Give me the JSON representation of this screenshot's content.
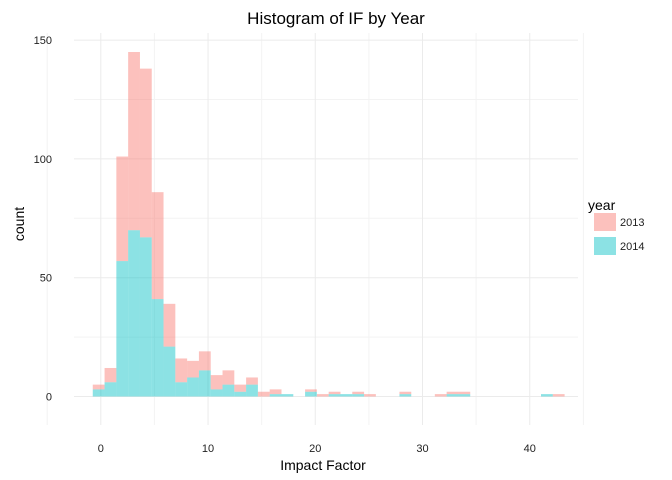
{
  "chart_data": {
    "type": "bar",
    "title": "Histogram of IF by Year",
    "xlabel": "Impact Factor",
    "ylabel": "count",
    "xlim": [
      -2.5,
      44.5
    ],
    "ylim": [
      -12,
      153
    ],
    "x_ticks": [
      0,
      10,
      20,
      30,
      40
    ],
    "y_ticks": [
      0,
      50,
      100,
      150
    ],
    "x_minor_ticks": [
      -5,
      5,
      15,
      25,
      35,
      45
    ],
    "y_minor_ticks": [
      25,
      75,
      125
    ],
    "bin_width": 1.1,
    "stacked": true,
    "grid": true,
    "legend": {
      "title": "year",
      "position": "right",
      "entries": [
        "2013",
        "2014"
      ]
    },
    "series": [
      {
        "name": "2013",
        "color": "#F8766D",
        "bins": [
          {
            "x": -0.2,
            "count": 2
          },
          {
            "x": 0.9,
            "count": 6
          },
          {
            "x": 2.0,
            "count": 44
          },
          {
            "x": 3.1,
            "count": 75
          },
          {
            "x": 4.2,
            "count": 71
          },
          {
            "x": 5.3,
            "count": 45
          },
          {
            "x": 6.4,
            "count": 18
          },
          {
            "x": 7.5,
            "count": 10
          },
          {
            "x": 8.6,
            "count": 7
          },
          {
            "x": 9.7,
            "count": 8
          },
          {
            "x": 10.8,
            "count": 6
          },
          {
            "x": 11.9,
            "count": 6
          },
          {
            "x": 13.0,
            "count": 3
          },
          {
            "x": 14.1,
            "count": 3
          },
          {
            "x": 15.2,
            "count": 2
          },
          {
            "x": 16.3,
            "count": 2
          },
          {
            "x": 19.6,
            "count": 1
          },
          {
            "x": 20.7,
            "count": 1
          },
          {
            "x": 21.8,
            "count": 1
          },
          {
            "x": 24.0,
            "count": 1
          },
          {
            "x": 25.1,
            "count": 1
          },
          {
            "x": 28.4,
            "count": 1
          },
          {
            "x": 31.7,
            "count": 1
          },
          {
            "x": 32.8,
            "count": 1
          },
          {
            "x": 33.9,
            "count": 1
          },
          {
            "x": 42.7,
            "count": 1
          }
        ]
      },
      {
        "name": "2014",
        "color": "#00BFC4",
        "bins": [
          {
            "x": -0.2,
            "count": 3
          },
          {
            "x": 0.9,
            "count": 6
          },
          {
            "x": 2.0,
            "count": 57
          },
          {
            "x": 3.1,
            "count": 70
          },
          {
            "x": 4.2,
            "count": 67
          },
          {
            "x": 5.3,
            "count": 41
          },
          {
            "x": 6.4,
            "count": 21
          },
          {
            "x": 7.5,
            "count": 6
          },
          {
            "x": 8.6,
            "count": 8
          },
          {
            "x": 9.7,
            "count": 11
          },
          {
            "x": 10.8,
            "count": 3
          },
          {
            "x": 11.9,
            "count": 5
          },
          {
            "x": 13.0,
            "count": 2
          },
          {
            "x": 14.1,
            "count": 5
          },
          {
            "x": 16.3,
            "count": 1
          },
          {
            "x": 17.4,
            "count": 1
          },
          {
            "x": 19.6,
            "count": 2
          },
          {
            "x": 21.8,
            "count": 1
          },
          {
            "x": 22.9,
            "count": 1
          },
          {
            "x": 24.0,
            "count": 1
          },
          {
            "x": 28.4,
            "count": 1
          },
          {
            "x": 32.8,
            "count": 1
          },
          {
            "x": 33.9,
            "count": 1
          },
          {
            "x": 41.6,
            "count": 1
          }
        ]
      }
    ]
  }
}
